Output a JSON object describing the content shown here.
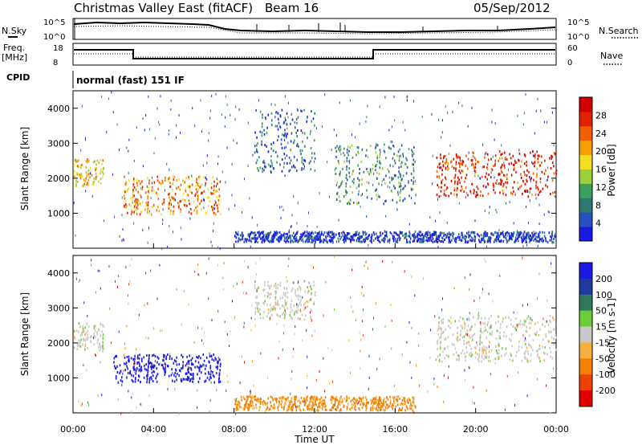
{
  "header": {
    "station": "Christmas Valley East (fitACF)",
    "beam": "Beam 16",
    "date": "05/Sep/2012"
  },
  "params": {
    "nsky_label": "N.Sky",
    "nsearch_label": "N.Search",
    "freq_label_1": "Freq.",
    "freq_label_2": "[MHz]",
    "nave_label": "Nave",
    "cpid_label": "CPID",
    "cpid_text": "normal (fast) 151 IF",
    "noise_ticks": [
      "10^5",
      "10^0"
    ],
    "noise_right_ticks": [
      "10^5",
      "10^0"
    ],
    "freq_ticks": [
      "18",
      "8"
    ],
    "nave_ticks": [
      "60",
      "0"
    ]
  },
  "colors": {
    "power": [
      "#1a1ae6",
      "#2a4fc0",
      "#2e7a6e",
      "#3aa060",
      "#9ad03a",
      "#f2e020",
      "#f5a000",
      "#f06000",
      "#e02000",
      "#d00000"
    ],
    "velocity": [
      "#1a1ae6",
      "#203aa0",
      "#2e7a5a",
      "#6acd3a",
      "#c8c8c8",
      "#f5b040",
      "#f58000",
      "#f04000",
      "#e00000"
    ]
  },
  "chart_data": [
    {
      "type": "heatmap",
      "title": "",
      "xlabel": "Time UT",
      "ylabel": "Slant Range [km]",
      "xlim": [
        0,
        24
      ],
      "ylim": [
        0,
        4500
      ],
      "x_ticks": [
        "00:00",
        "04:00",
        "08:00",
        "12:00",
        "16:00",
        "20:00",
        "00:00"
      ],
      "y_ticks": [
        "1000",
        "2000",
        "3000",
        "4000"
      ],
      "colorbar": {
        "label": "Power [dB]",
        "ticks": [
          "4",
          "8",
          "12",
          "16",
          "20",
          "24",
          "28"
        ]
      },
      "regions": [
        {
          "t0": 0.0,
          "t1": 1.5,
          "r0": 1800,
          "r1": 2600,
          "level": 0.6
        },
        {
          "t0": 2.5,
          "t1": 7.3,
          "r0": 1000,
          "r1": 2100,
          "level": 0.7
        },
        {
          "t0": 9.0,
          "t1": 12.0,
          "r0": 2200,
          "r1": 4000,
          "level": 0.2
        },
        {
          "t0": 13.0,
          "t1": 17.0,
          "r0": 1300,
          "r1": 3000,
          "level": 0.3
        },
        {
          "t0": 18.0,
          "t1": 24.0,
          "r0": 1500,
          "r1": 2800,
          "level": 0.85
        },
        {
          "t0": 8.0,
          "t1": 24.0,
          "r0": 200,
          "r1": 500,
          "level": 0.1
        }
      ]
    },
    {
      "type": "heatmap",
      "title": "",
      "xlabel": "Time UT",
      "ylabel": "Slant Range [km]",
      "xlim": [
        0,
        24
      ],
      "ylim": [
        0,
        4500
      ],
      "x_ticks": [
        "00:00",
        "04:00",
        "08:00",
        "12:00",
        "16:00",
        "20:00",
        "00:00"
      ],
      "y_ticks": [
        "1000",
        "2000",
        "3000",
        "4000"
      ],
      "colorbar": {
        "label": "Velocity [m s-1]",
        "ticks": [
          "200",
          "100",
          "50",
          "15",
          "-15",
          "-50",
          "-100",
          "-200"
        ]
      },
      "regions": [
        {
          "t0": 0.0,
          "t1": 1.5,
          "r0": 1800,
          "r1": 2600,
          "v": 0
        },
        {
          "t0": 2.0,
          "t1": 7.3,
          "r0": 900,
          "r1": 1700,
          "v": 250
        },
        {
          "t0": 9.0,
          "t1": 12.0,
          "r0": 2700,
          "r1": 3800,
          "v": 0
        },
        {
          "t0": 18.0,
          "t1": 24.0,
          "r0": 1500,
          "r1": 2800,
          "v": 0
        },
        {
          "t0": 8.0,
          "t1": 17.0,
          "r0": 100,
          "r1": 500,
          "v": -60
        }
      ]
    }
  ]
}
